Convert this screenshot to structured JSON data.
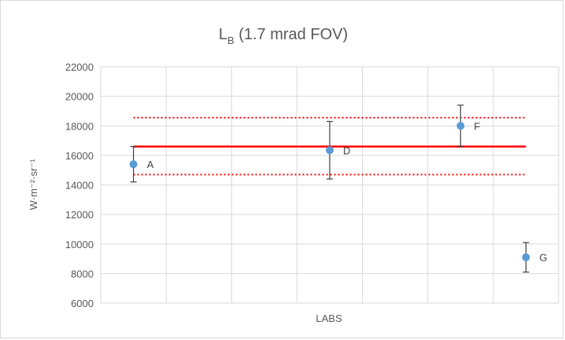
{
  "chart_data": {
    "type": "scatter",
    "title": {
      "main": "L",
      "subscript": "B",
      "rest": " (1.7 mrad FOV)"
    },
    "ylabel": "W·m⁻²·sr⁻¹",
    "xlabel": "LABS",
    "ylim": [
      6000,
      22000
    ],
    "yticks": [
      6000,
      8000,
      10000,
      12000,
      14000,
      16000,
      18000,
      20000,
      22000
    ],
    "ytick_labels": [
      "6000",
      "8000",
      "10000",
      "12000",
      "14000",
      "16000",
      "18000",
      "20000",
      "22000"
    ],
    "x_categories": 7,
    "grid": "both",
    "series": [
      {
        "color": "#5b9bd5",
        "points": [
          {
            "label": "A",
            "x": 1,
            "y": 15400,
            "err_low": 14200,
            "err_high": 16600
          },
          {
            "label": "D",
            "x": 4,
            "y": 16350,
            "err_low": 14400,
            "err_high": 18300
          },
          {
            "label": "F",
            "x": 6,
            "y": 18000,
            "err_low": 16600,
            "err_high": 19400
          },
          {
            "label": "G",
            "x": 7,
            "y": 9100,
            "err_low": 8100,
            "err_high": 10100
          }
        ]
      }
    ],
    "reference_lines": [
      {
        "y": 16600,
        "style": "solid",
        "color": "#ff0000"
      },
      {
        "y": 18550,
        "style": "dotted",
        "color": "#ff0000"
      },
      {
        "y": 14700,
        "style": "dotted",
        "color": "#ff0000"
      }
    ],
    "reference_x_range": [
      1,
      7
    ],
    "error_bar_color": "#404040"
  }
}
